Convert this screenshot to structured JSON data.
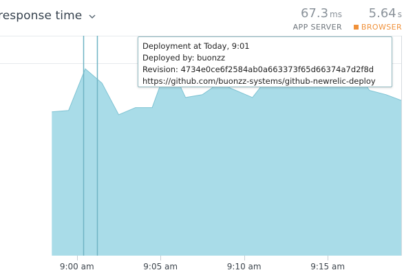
{
  "header": {
    "title": "response time",
    "app_server": {
      "value": "67.3",
      "unit": "ms",
      "label": "APP SERVER"
    },
    "browser": {
      "value": "5.64",
      "unit": "s",
      "label": "BROWSER",
      "color": "#f0913a"
    }
  },
  "tooltip": {
    "line1": "Deployment at Today, 9:01",
    "line2": "Deployed by: buonzz",
    "line3": "Revision: 4734e0ce6f2584ab0a663373f65d66374a7d2f8d",
    "line4": "https://github.com/buonzz-systems/github-newrelic-deploy"
  },
  "colors": {
    "area_fill": "#a9dce8",
    "area_line": "#7fc3d3",
    "deploy_marker": "#6fb3c3"
  },
  "chart_data": {
    "type": "area",
    "x_ticks": [
      "am",
      "9:00 am",
      "9:05 am",
      "9:10 am",
      "9:15 am"
    ],
    "x_minutes": [
      -1.5,
      -0.5,
      0.5,
      1.5,
      2.5,
      3.5,
      4.5,
      5.5,
      6.5,
      7.5,
      8.5,
      9.5,
      10.5,
      11.5,
      12.5,
      13.5,
      14.5,
      15.5,
      16.5,
      17.5,
      18.5,
      19.5
    ],
    "values": [
      100,
      101,
      130,
      120,
      98,
      103,
      103,
      135,
      110,
      112,
      120,
      115,
      110,
      125,
      118,
      135,
      120,
      125,
      132,
      115,
      112,
      108
    ],
    "deployments_minutes": [
      0.4,
      1.2
    ],
    "xlim_minutes": [
      -4.6,
      19.4
    ],
    "ylim": [
      0,
      153
    ],
    "grid": true
  }
}
